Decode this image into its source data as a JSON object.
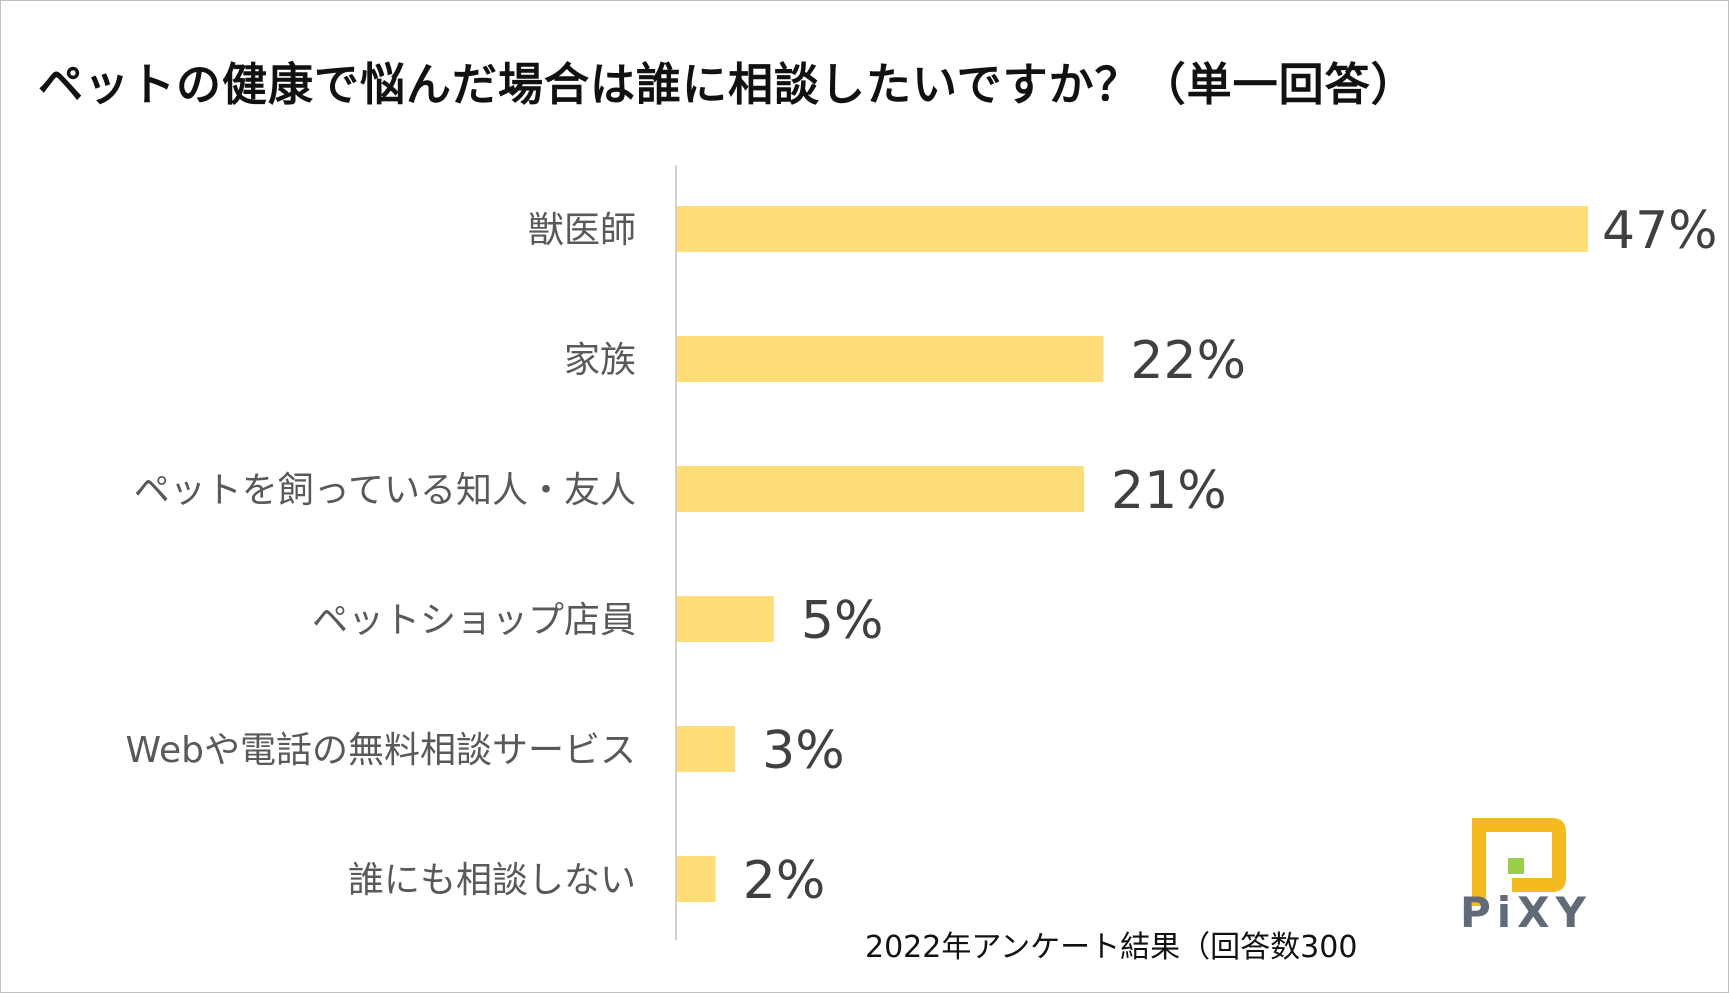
{
  "chart_data": {
    "type": "bar",
    "orientation": "horizontal",
    "title": "ペットの健康で悩んだ場合は誰に相談したいですか？（単一回答）",
    "categories": [
      "獣医師",
      "家族",
      "ペットを飼っている知人・友人",
      "ペットショップ店員",
      "Webや電話の無料相談サービス",
      "誰にも相談しない"
    ],
    "values": [
      47,
      22,
      21,
      5,
      3,
      2
    ],
    "value_labels": [
      "47%",
      "22%",
      "21%",
      "5%",
      "3%",
      "2%"
    ],
    "unit": "%",
    "xlim": [
      0,
      50
    ],
    "grid": false,
    "legend": "none",
    "colors": {
      "bar": "#FFDD78",
      "axis": "#d0d0d0"
    },
    "footnote": "2022年アンケート結果（回答数300"
  },
  "logo": {
    "text": "PiXY",
    "colors": {
      "frame": "#F5BA1F",
      "accent": "#9ACD4A",
      "text": "#5f6b78"
    }
  }
}
